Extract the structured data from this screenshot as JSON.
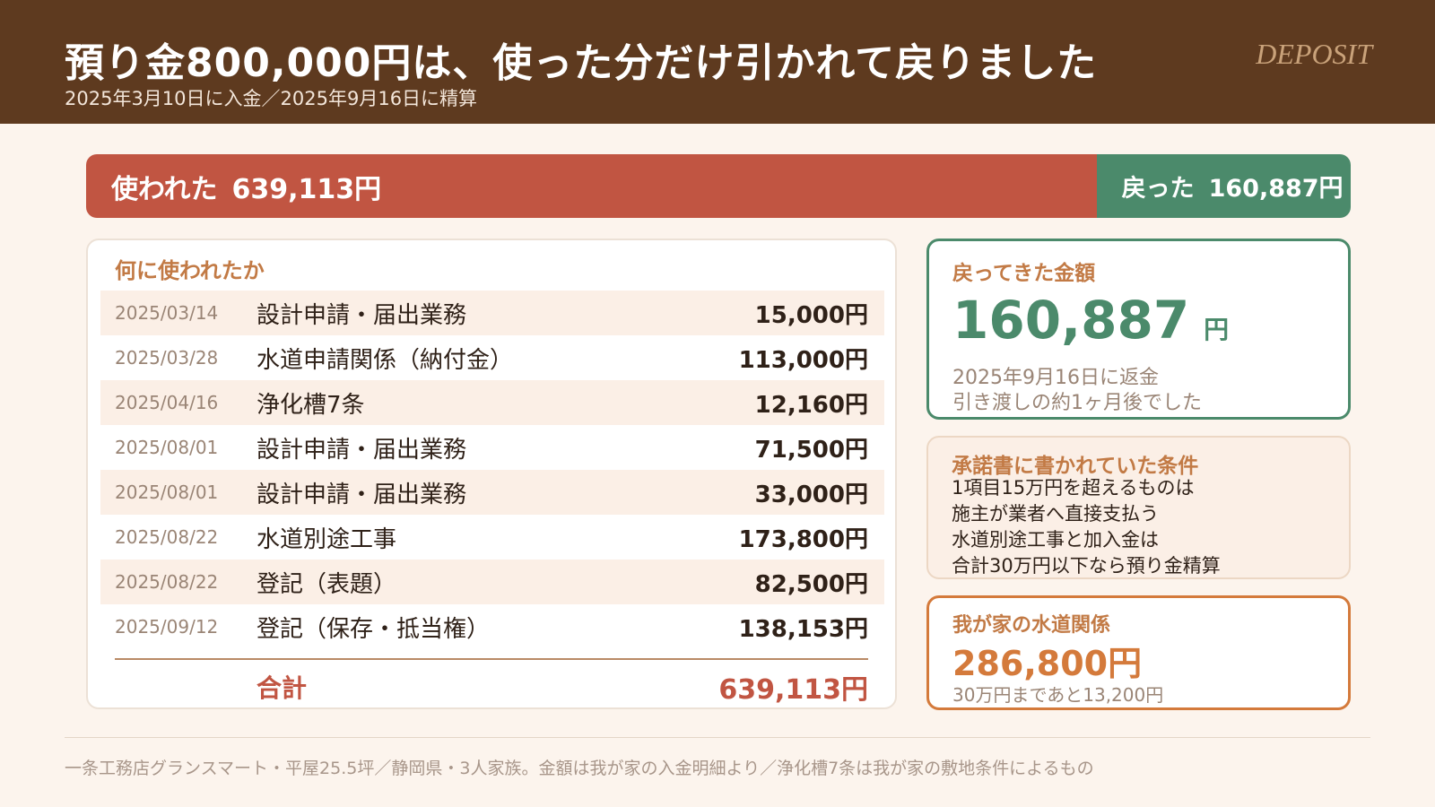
{
  "header": {
    "title": "預り金800,000円は、使った分だけ引かれて戻りました",
    "subtitle": "2025年3月10日に入金／2025年9月16日に精算",
    "tag": "DEPOSIT"
  },
  "summary_bar": {
    "used_label": "使われた",
    "used_amount": "639,113円",
    "returned_label": "戻った",
    "returned_amount": "160,887円",
    "used_fraction": 0.799
  },
  "ledger": {
    "heading": "何に使われたか",
    "rows": [
      {
        "date": "2025/03/14",
        "item": "設計申請・届出業務",
        "amount": "15,000円"
      },
      {
        "date": "2025/03/28",
        "item": "水道申請関係（納付金）",
        "amount": "113,000円"
      },
      {
        "date": "2025/04/16",
        "item": "浄化槽7条",
        "amount": "12,160円"
      },
      {
        "date": "2025/08/01",
        "item": "設計申請・届出業務",
        "amount": "71,500円"
      },
      {
        "date": "2025/08/01",
        "item": "設計申請・届出業務",
        "amount": "33,000円"
      },
      {
        "date": "2025/08/22",
        "item": "水道別途工事",
        "amount": "173,800円"
      },
      {
        "date": "2025/08/22",
        "item": "登記（表題）",
        "amount": "82,500円"
      },
      {
        "date": "2025/09/12",
        "item": "登記（保存・抵当権）",
        "amount": "138,153円"
      }
    ],
    "total_label": "合計",
    "total_value": "639,113円"
  },
  "return_card": {
    "label": "戻ってきた金額",
    "amount": "160,887",
    "unit": "円",
    "note1": "2025年9月16日に返金",
    "note2": "引き渡しの約1ヶ月後でした"
  },
  "terms_card": {
    "label": "承諾書に書かれていた条件",
    "lines": [
      "1項目15万円を超えるものは",
      "施主が業者へ直接支払う",
      "水道別途工事と加入金は",
      "合計30万円以下なら預り金精算"
    ]
  },
  "water_card": {
    "label": "我が家の水道関係",
    "value": "286,800円",
    "note": "30万円まであと13,200円"
  },
  "footer": "一条工務店グランスマート・平屋25.5坪／静岡県・3人家族。金額は我が家の入金明細より／浄化槽7条は我が家の敷地条件によるもの",
  "colors": {
    "header_bg": "#5e3a1f",
    "used": "#c15542",
    "returned": "#4b8a6b",
    "accent": "#c27a45",
    "water": "#d47a3b"
  }
}
